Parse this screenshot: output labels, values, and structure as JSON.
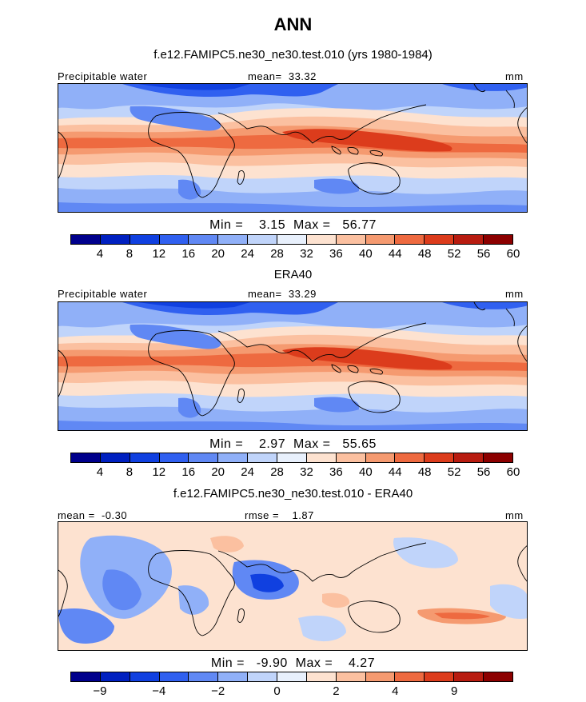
{
  "title": "ANN",
  "panels": [
    {
      "title": "f.e12.FAMIPC5.ne30_ne30.test.010 (yrs 1980-1984)",
      "left_label": "Precipitable water",
      "center_label": "mean=  33.32",
      "right_label": "mm",
      "minmax": "Min =    3.15  Max =   56.77",
      "colorbar_ticks": [
        "4",
        "8",
        "12",
        "16",
        "20",
        "24",
        "28",
        "32",
        "36",
        "40",
        "44",
        "48",
        "52",
        "56",
        "60"
      ],
      "map_kind": "field"
    },
    {
      "title": "ERA40",
      "left_label": "Precipitable water",
      "center_label": "mean=  33.29",
      "right_label": "mm",
      "minmax": "Min =    2.97  Max =   55.65",
      "colorbar_ticks": [
        "4",
        "8",
        "12",
        "16",
        "20",
        "24",
        "28",
        "32",
        "36",
        "40",
        "44",
        "48",
        "52",
        "56",
        "60"
      ],
      "map_kind": "field"
    },
    {
      "title": "f.e12.FAMIPC5.ne30_ne30.test.010 - ERA40",
      "left_label": "mean =  -0.30",
      "center_label": "rmse =    1.87",
      "right_label": "mm",
      "minmax": "Min =   -9.90  Max =    4.27",
      "colorbar_ticks": [
        "−9",
        "−4",
        "−2",
        "0",
        "2",
        "4",
        "9"
      ],
      "colorbar_tick_slots": [
        1,
        3,
        5,
        7,
        9,
        11,
        13
      ],
      "map_kind": "diff"
    }
  ],
  "colors": {
    "palette": [
      "#00008c",
      "#0020c0",
      "#1040e0",
      "#3060f0",
      "#6088f4",
      "#90b0f8",
      "#c0d4fa",
      "#e8f0fc",
      "#fde2d0",
      "#fbc0a0",
      "#f59a70",
      "#ee6a40",
      "#dc3c1c",
      "#b81c10",
      "#8c0000"
    ]
  }
}
